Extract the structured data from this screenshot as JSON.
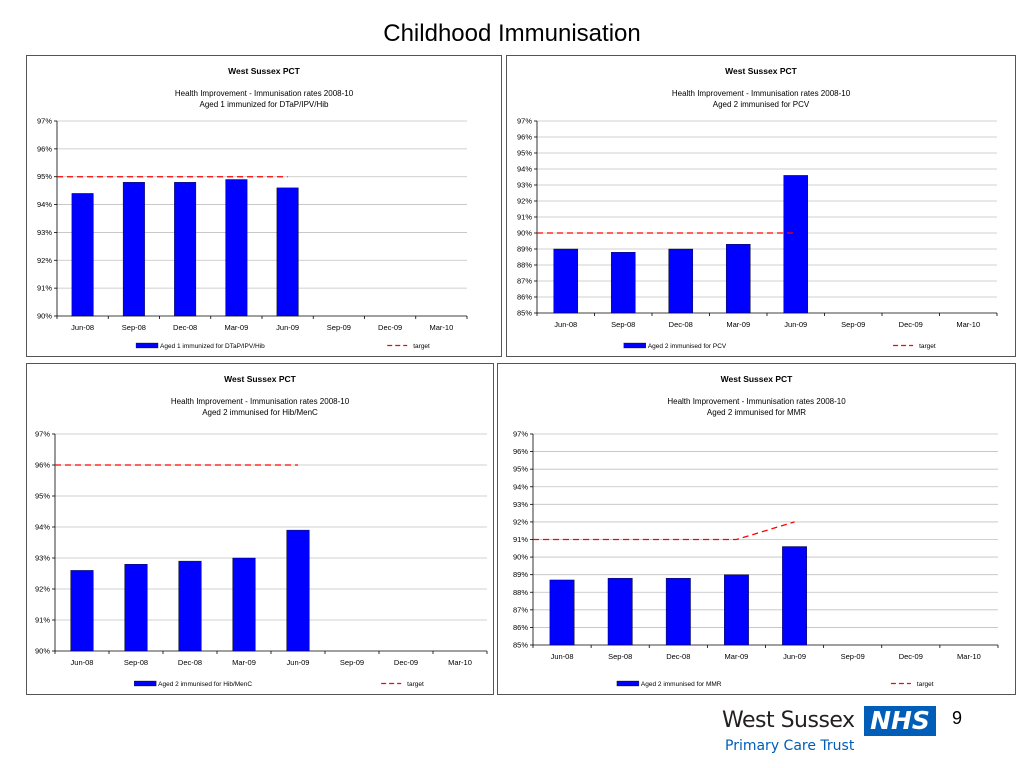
{
  "slide": {
    "title": "Childhood Immunisation",
    "page_number": "9",
    "logo": {
      "org": "West Sussex",
      "nhs": "NHS",
      "subtitle": "Primary Care Trust"
    }
  },
  "colors": {
    "bar": "#0000ff",
    "target": "#ff0000",
    "grid": "#c0c0c0"
  },
  "chart_data": [
    {
      "type": "bar",
      "title": "West Sussex PCT",
      "subtitle_line1": "Health Improvement - Immunisation rates 2008-10",
      "subtitle_line2": "Aged 1 immunized for DTaP/IPV/Hib",
      "categories": [
        "Jun-08",
        "Sep-08",
        "Dec-08",
        "Mar-09",
        "Jun-09",
        "Sep-09",
        "Dec-09",
        "Mar-10"
      ],
      "ylim": [
        90,
        97
      ],
      "ystep": 1,
      "series": [
        {
          "name": "Aged 1 immunized for DTaP/IPV/Hib",
          "kind": "bar",
          "values": [
            94.4,
            94.8,
            94.8,
            94.9,
            94.6,
            null,
            null,
            null
          ]
        },
        {
          "name": "target",
          "kind": "line",
          "values": [
            95,
            95,
            95,
            95,
            95,
            null,
            null,
            null
          ]
        }
      ],
      "legend": "bottom",
      "grid": true
    },
    {
      "type": "bar",
      "title": "West Sussex PCT",
      "subtitle_line1": "Health Improvement - Immunisation rates 2008-10",
      "subtitle_line2": "Aged 2  immunised for PCV",
      "categories": [
        "Jun-08",
        "Sep-08",
        "Dec-08",
        "Mar-09",
        "Jun-09",
        "Sep-09",
        "Dec-09",
        "Mar-10"
      ],
      "ylim": [
        85,
        97
      ],
      "ystep": 1,
      "series": [
        {
          "name": "Aged 2  immunised for PCV",
          "kind": "bar",
          "values": [
            89.0,
            88.8,
            89.0,
            89.3,
            93.6,
            null,
            null,
            null
          ]
        },
        {
          "name": "target",
          "kind": "line",
          "values": [
            90,
            90,
            90,
            90,
            90,
            null,
            null,
            null
          ]
        }
      ],
      "legend": "bottom",
      "grid": true
    },
    {
      "type": "bar",
      "title": "West Sussex PCT",
      "subtitle_line1": "Health Improvement - Immunisation rates 2008-10",
      "subtitle_line2": "Aged 2 immunised for Hib/MenC",
      "categories": [
        "Jun-08",
        "Sep-08",
        "Dec-08",
        "Mar-09",
        "Jun-09",
        "Sep-09",
        "Dec-09",
        "Mar-10"
      ],
      "ylim": [
        90,
        97
      ],
      "ystep": 1,
      "series": [
        {
          "name": "Aged 2 immunised for Hib/MenC",
          "kind": "bar",
          "values": [
            92.6,
            92.8,
            92.9,
            93.0,
            93.9,
            null,
            null,
            null
          ]
        },
        {
          "name": "target",
          "kind": "line",
          "values": [
            96,
            96,
            96,
            96,
            96,
            null,
            null,
            null
          ]
        }
      ],
      "legend": "bottom",
      "grid": true
    },
    {
      "type": "bar",
      "title": "West Sussex PCT",
      "subtitle_line1": "Health Improvement - Immunisation rates 2008-10",
      "subtitle_line2": "Aged 2 immunised for MMR",
      "categories": [
        "Jun-08",
        "Sep-08",
        "Dec-08",
        "Mar-09",
        "Jun-09",
        "Sep-09",
        "Dec-09",
        "Mar-10"
      ],
      "ylim": [
        85,
        97
      ],
      "ystep": 1,
      "series": [
        {
          "name": "Aged 2 immunised for MMR",
          "kind": "bar",
          "values": [
            88.7,
            88.8,
            88.8,
            89.0,
            90.6,
            null,
            null,
            null
          ]
        },
        {
          "name": "target",
          "kind": "line",
          "values": [
            91,
            91,
            91,
            91,
            92,
            null,
            null,
            null
          ]
        }
      ],
      "legend": "bottom",
      "grid": true
    }
  ]
}
